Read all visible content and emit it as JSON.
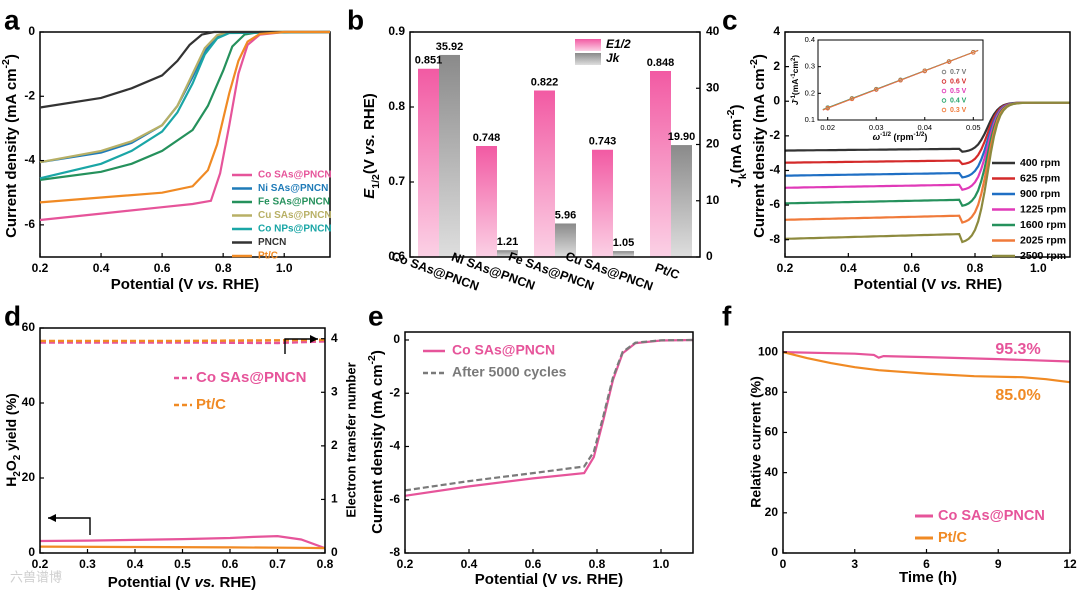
{
  "figure": {
    "panel_letters": [
      "a",
      "b",
      "c",
      "d",
      "e",
      "f"
    ],
    "watermark": "六兽谱博"
  },
  "chart_data": [
    {
      "panel": "a",
      "type": "line",
      "xlabel": "Potential (V vs. RHE)",
      "ylabel": "Current density (mA cm-2)",
      "xlim": [
        0.2,
        1.15
      ],
      "ylim": [
        -7,
        0
      ],
      "xticks": [
        "0.2",
        "0.4",
        "0.6",
        "0.8",
        "1.0"
      ],
      "yticks": [
        "0",
        "-2",
        "-4",
        "-6"
      ],
      "legend_position": "lower-right",
      "series": [
        {
          "name": "Co SAs@PNCN",
          "color": "#e6549a",
          "points": [
            [
              0.2,
              -5.85
            ],
            [
              0.4,
              -5.65
            ],
            [
              0.6,
              -5.45
            ],
            [
              0.7,
              -5.35
            ],
            [
              0.76,
              -5.25
            ],
            [
              0.79,
              -4.4
            ],
            [
              0.82,
              -2.9
            ],
            [
              0.85,
              -1.3
            ],
            [
              0.88,
              -0.4
            ],
            [
              0.92,
              -0.08
            ],
            [
              1.0,
              0
            ],
            [
              1.15,
              0
            ]
          ]
        },
        {
          "name": "Ni SAs@PNCN",
          "color": "#1f7bb8",
          "points": [
            [
              0.2,
              -4.05
            ],
            [
              0.4,
              -3.75
            ],
            [
              0.5,
              -3.45
            ],
            [
              0.6,
              -2.9
            ],
            [
              0.65,
              -2.3
            ],
            [
              0.7,
              -1.4
            ],
            [
              0.74,
              -0.6
            ],
            [
              0.78,
              -0.15
            ],
            [
              0.82,
              -0.02
            ],
            [
              1.15,
              0
            ]
          ]
        },
        {
          "name": "Fe SAs@PNCN",
          "color": "#25915c",
          "points": [
            [
              0.2,
              -4.6
            ],
            [
              0.4,
              -4.35
            ],
            [
              0.5,
              -4.1
            ],
            [
              0.6,
              -3.7
            ],
            [
              0.7,
              -3.05
            ],
            [
              0.75,
              -2.3
            ],
            [
              0.8,
              -1.2
            ],
            [
              0.83,
              -0.45
            ],
            [
              0.87,
              -0.08
            ],
            [
              0.92,
              0
            ],
            [
              1.15,
              0
            ]
          ]
        },
        {
          "name": "Cu SAs@PNCN",
          "color": "#b8b066",
          "points": [
            [
              0.2,
              -4.05
            ],
            [
              0.4,
              -3.7
            ],
            [
              0.5,
              -3.4
            ],
            [
              0.6,
              -2.9
            ],
            [
              0.65,
              -2.3
            ],
            [
              0.7,
              -1.3
            ],
            [
              0.74,
              -0.5
            ],
            [
              0.78,
              -0.1
            ],
            [
              0.82,
              0
            ],
            [
              1.15,
              0
            ]
          ]
        },
        {
          "name": "Co NPs@PNCN",
          "color": "#1aa6a6",
          "points": [
            [
              0.2,
              -4.55
            ],
            [
              0.4,
              -4.1
            ],
            [
              0.5,
              -3.7
            ],
            [
              0.6,
              -3.1
            ],
            [
              0.65,
              -2.5
            ],
            [
              0.7,
              -1.6
            ],
            [
              0.74,
              -0.7
            ],
            [
              0.78,
              -0.2
            ],
            [
              0.82,
              -0.03
            ],
            [
              1.15,
              0
            ]
          ]
        },
        {
          "name": "PNCN",
          "color": "#333333",
          "points": [
            [
              0.2,
              -2.35
            ],
            [
              0.4,
              -2.05
            ],
            [
              0.5,
              -1.75
            ],
            [
              0.6,
              -1.35
            ],
            [
              0.65,
              -0.9
            ],
            [
              0.69,
              -0.4
            ],
            [
              0.73,
              -0.08
            ],
            [
              0.77,
              0
            ],
            [
              1.15,
              0
            ]
          ]
        },
        {
          "name": "Pt/C",
          "color": "#f08a24",
          "points": [
            [
              0.2,
              -5.3
            ],
            [
              0.4,
              -5.15
            ],
            [
              0.6,
              -5.0
            ],
            [
              0.7,
              -4.8
            ],
            [
              0.75,
              -4.3
            ],
            [
              0.78,
              -3.5
            ],
            [
              0.82,
              -1.9
            ],
            [
              0.85,
              -0.9
            ],
            [
              0.88,
              -0.3
            ],
            [
              0.92,
              -0.06
            ],
            [
              1.0,
              0
            ],
            [
              1.15,
              0
            ]
          ]
        }
      ]
    },
    {
      "panel": "b",
      "type": "bar",
      "categories": [
        "Co SAs@PNCN",
        "Ni SAs@PNCN",
        "Fe SAs@PNCN",
        "Cu SAs@PNCN",
        "Pt/C"
      ],
      "ylabel_left": "E1/2 (V vs. RHE)",
      "ylabel_right": "Jk (mA cm-2)",
      "ylim_left": [
        0.6,
        0.9
      ],
      "ylim_right": [
        0,
        40
      ],
      "yticks_left": [
        "0.6",
        "0.7",
        "0.8",
        "0.9"
      ],
      "yticks_right": [
        "0",
        "10",
        "20",
        "30",
        "40"
      ],
      "legend_position": "top-right",
      "series": [
        {
          "name": "E1/2",
          "axis": "left",
          "color": "#f25aa3",
          "values": [
            0.851,
            0.748,
            0.822,
            0.743,
            0.848
          ],
          "labels": [
            "0.851",
            "0.748",
            "0.822",
            "0.743",
            "0.848"
          ]
        },
        {
          "name": "Jk",
          "axis": "right",
          "color": "#8a8a8a",
          "values": [
            35.92,
            1.21,
            5.96,
            1.05,
            19.9
          ],
          "labels": [
            "35.92",
            "1.21",
            "5.96",
            "1.05",
            "19.90"
          ]
        }
      ]
    },
    {
      "panel": "c",
      "type": "line",
      "xlabel": "Potential (V vs. RHE)",
      "ylabel": "Current density (mA cm-2)",
      "xlim": [
        0.2,
        1.1
      ],
      "ylim": [
        -9,
        4
      ],
      "xticks": [
        "0.2",
        "0.4",
        "0.6",
        "0.8",
        "1.0"
      ],
      "yticks": [
        "4",
        "2",
        "0",
        "-2",
        "-4",
        "-6",
        "-8"
      ],
      "legend_position": "lower-right",
      "series": [
        {
          "name": "400 rpm",
          "color": "#333333",
          "limiting": -2.85
        },
        {
          "name": "625 rpm",
          "color": "#d42a2a",
          "limiting": -3.55
        },
        {
          "name": "900 rpm",
          "color": "#1f6fc4",
          "limiting": -4.3
        },
        {
          "name": "1225 rpm",
          "color": "#e03ab8",
          "limiting": -5.0
        },
        {
          "name": "1600 rpm",
          "color": "#25915c",
          "limiting": -5.9
        },
        {
          "name": "2025 rpm",
          "color": "#f07a3a",
          "limiting": -6.85
        },
        {
          "name": "2500 rpm",
          "color": "#8d8a3e",
          "limiting": -7.95
        }
      ],
      "inset": {
        "xlabel": "ω-1/2 (rpm-1/2)",
        "ylabel": "J-1(mA-1cm2)",
        "xlim": [
          0.018,
          0.052
        ],
        "ylim": [
          0.1,
          0.4
        ],
        "xticks": [
          "0.02",
          "0.03",
          "0.04",
          "0.05"
        ],
        "yticks": [
          "0.1",
          "0.2",
          "0.3",
          "0.4"
        ],
        "series": [
          {
            "name": "0.7 V",
            "color": "#777777",
            "slope": 6.92,
            "intercept": 0.0083
          },
          {
            "name": "0.6 V",
            "color": "#d42a2a",
            "slope": 6.98,
            "intercept": 0.0045
          },
          {
            "name": "0.5 V",
            "color": "#e03ab8",
            "slope": 6.95,
            "intercept": 0.0063
          },
          {
            "name": "0.4 V",
            "color": "#25a56a",
            "slope": 6.94,
            "intercept": 0.0072
          },
          {
            "name": "0.3 V",
            "color": "#f07a3a",
            "slope": 6.97,
            "intercept": 0.0054
          }
        ],
        "x_points": [
          0.02,
          0.025,
          0.03,
          0.035,
          0.04,
          0.045,
          0.05
        ]
      }
    },
    {
      "panel": "d",
      "type": "line",
      "xlabel": "Potential (V vs. RHE)",
      "ylabel_left": "H2O2 yield (%)",
      "ylabel_right": "Electron transfer number",
      "xlim": [
        0.2,
        0.8
      ],
      "ylim_left": [
        0,
        60
      ],
      "ylim_right": [
        0,
        4.2
      ],
      "xticks": [
        "0.2",
        "0.3",
        "0.4",
        "0.5",
        "0.6",
        "0.7",
        "0.8"
      ],
      "yticks_left": [
        "0",
        "20",
        "40",
        "60"
      ],
      "yticks_right": [
        "0",
        "1",
        "2",
        "3",
        "4"
      ],
      "series": [
        {
          "name": "Co SAs@PNCN",
          "color": "#e6549a",
          "h2o2": [
            [
              0.2,
              3.2
            ],
            [
              0.3,
              3.3
            ],
            [
              0.4,
              3.5
            ],
            [
              0.5,
              3.7
            ],
            [
              0.6,
              4.0
            ],
            [
              0.65,
              4.3
            ],
            [
              0.7,
              4.5
            ],
            [
              0.75,
              3.6
            ],
            [
              0.8,
              1.3
            ]
          ],
          "n": [
            [
              0.2,
              3.93
            ],
            [
              0.5,
              3.93
            ],
            [
              0.7,
              3.92
            ],
            [
              0.8,
              3.95
            ]
          ]
        },
        {
          "name": "Pt/C",
          "color": "#f08a24",
          "h2o2": [
            [
              0.2,
              1.7
            ],
            [
              0.4,
              1.6
            ],
            [
              0.6,
              1.5
            ],
            [
              0.75,
              1.4
            ],
            [
              0.8,
              1.3
            ]
          ],
          "n": [
            [
              0.2,
              3.96
            ],
            [
              0.5,
              3.96
            ],
            [
              0.7,
              3.97
            ],
            [
              0.8,
              3.98
            ]
          ]
        }
      ]
    },
    {
      "panel": "e",
      "type": "line",
      "xlabel": "Potential (V vs. RHE)",
      "ylabel": "Current density (mA cm-2)",
      "xlim": [
        0.2,
        1.1
      ],
      "ylim": [
        -8,
        0.3
      ],
      "xticks": [
        "0.2",
        "0.4",
        "0.6",
        "0.8",
        "1.0"
      ],
      "yticks": [
        "0",
        "-2",
        "-4",
        "-6",
        "-8"
      ],
      "legend_position": "top-left",
      "series": [
        {
          "name": "Co SAs@PNCN",
          "color": "#e6549a",
          "dash": false,
          "points": [
            [
              0.2,
              -5.85
            ],
            [
              0.4,
              -5.5
            ],
            [
              0.6,
              -5.2
            ],
            [
              0.76,
              -5.0
            ],
            [
              0.79,
              -4.4
            ],
            [
              0.82,
              -3.0
            ],
            [
              0.85,
              -1.5
            ],
            [
              0.88,
              -0.5
            ],
            [
              0.92,
              -0.12
            ],
            [
              1.0,
              -0.02
            ],
            [
              1.1,
              0
            ]
          ]
        },
        {
          "name": "After 5000 cycles",
          "color": "#7a7a7a",
          "dash": true,
          "points": [
            [
              0.2,
              -5.65
            ],
            [
              0.4,
              -5.3
            ],
            [
              0.6,
              -5.0
            ],
            [
              0.76,
              -4.75
            ],
            [
              0.79,
              -4.2
            ],
            [
              0.82,
              -2.85
            ],
            [
              0.85,
              -1.4
            ],
            [
              0.88,
              -0.45
            ],
            [
              0.92,
              -0.1
            ],
            [
              1.0,
              -0.01
            ],
            [
              1.1,
              0
            ]
          ]
        }
      ]
    },
    {
      "panel": "f",
      "type": "line",
      "xlabel": "Time (h)",
      "ylabel": "Relative current (%)",
      "xlim": [
        0,
        12
      ],
      "ylim": [
        0,
        110
      ],
      "xticks": [
        "0",
        "3",
        "6",
        "9",
        "12"
      ],
      "yticks": [
        "0",
        "20",
        "40",
        "60",
        "80",
        "100"
      ],
      "legend_position": "lower-right",
      "annotations": [
        "95.3%",
        "85.0%"
      ],
      "series": [
        {
          "name": "Co SAs@PNCN",
          "color": "#e6549a",
          "points": [
            [
              0,
              100
            ],
            [
              3,
              99.2
            ],
            [
              3.8,
              98.6
            ],
            [
              4,
              97.2
            ],
            [
              4.2,
              98.0
            ],
            [
              6,
              97.5
            ],
            [
              9,
              96.5
            ],
            [
              12,
              95.3
            ]
          ]
        },
        {
          "name": "Pt/C",
          "color": "#f08a24",
          "points": [
            [
              0,
              100
            ],
            [
              1,
              97
            ],
            [
              2,
              94.5
            ],
            [
              3,
              92.5
            ],
            [
              4,
              91
            ],
            [
              6,
              89.3
            ],
            [
              8,
              88.0
            ],
            [
              10,
              87.5
            ],
            [
              11,
              86.5
            ],
            [
              12,
              85.0
            ]
          ]
        }
      ]
    }
  ]
}
